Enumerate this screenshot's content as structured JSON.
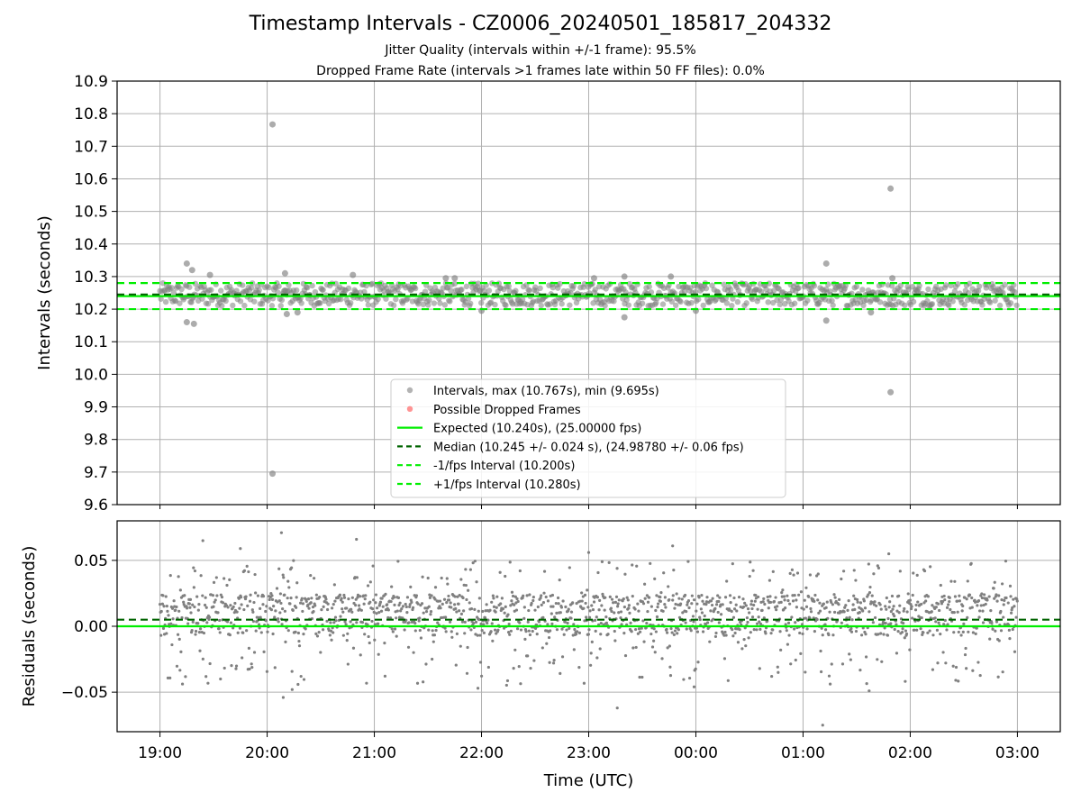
{
  "figure": {
    "title": "Timestamp Intervals - CZ0006_20240501_185817_204332",
    "subtitle_1": "Jitter Quality (intervals within +/-1 frame): 95.5%",
    "subtitle_2": "Dropped Frame Rate (intervals >1 frames late within 50 FF files): 0.0%"
  },
  "colors": {
    "points": "#808080",
    "dropped": "#ff4d4d",
    "expected": "#00ee00",
    "median": "#006400",
    "bounds": "#00ee00",
    "grid": "#b0b0b0"
  },
  "chart_data": [
    {
      "type": "scatter",
      "ylabel": "Intervals (seconds)",
      "ylim": [
        9.6,
        10.9
      ],
      "yticks": [
        "9.6",
        "9.7",
        "9.8",
        "9.9",
        "10.0",
        "10.1",
        "10.2",
        "10.3",
        "10.4",
        "10.5",
        "10.6",
        "10.7",
        "10.8",
        "10.9"
      ],
      "xlim": [
        "18:36",
        "03:24"
      ],
      "grid": true,
      "legend_position": "lower center",
      "series": [
        {
          "name": "Intervals, max (10.767s), min (9.695s)",
          "kind": "points"
        },
        {
          "name": "Possible Dropped Frames",
          "kind": "points",
          "count": 0
        },
        {
          "name": "Expected (10.240s), (25.00000 fps)",
          "kind": "hline",
          "y": 10.24
        },
        {
          "name": "Median (10.245 +/- 0.024 s), (24.98780 +/- 0.06 fps)",
          "kind": "hline",
          "y": 10.245
        },
        {
          "name": "-1/fps Interval (10.200s)",
          "kind": "hline",
          "y": 10.2
        },
        {
          "name": "+1/fps Interval (10.280s)",
          "kind": "hline",
          "y": 10.28
        }
      ],
      "bulk_range": [
        10.21,
        10.28
      ],
      "outliers": [
        {
          "t": "19:15",
          "y": 10.34
        },
        {
          "t": "19:18",
          "y": 10.32
        },
        {
          "t": "19:15",
          "y": 10.16
        },
        {
          "t": "19:19",
          "y": 10.155
        },
        {
          "t": "19:28",
          "y": 10.305
        },
        {
          "t": "20:03",
          "y": 10.767
        },
        {
          "t": "20:03",
          "y": 9.695
        },
        {
          "t": "20:10",
          "y": 10.31
        },
        {
          "t": "20:11",
          "y": 10.185
        },
        {
          "t": "20:17",
          "y": 10.19
        },
        {
          "t": "20:48",
          "y": 10.305
        },
        {
          "t": "21:40",
          "y": 10.295
        },
        {
          "t": "21:45",
          "y": 10.295
        },
        {
          "t": "22:00",
          "y": 10.195
        },
        {
          "t": "23:03",
          "y": 10.295
        },
        {
          "t": "23:20",
          "y": 10.3
        },
        {
          "t": "23:20",
          "y": 10.175
        },
        {
          "t": "23:46",
          "y": 10.3
        },
        {
          "t": "00:00",
          "y": 10.195
        },
        {
          "t": "01:13",
          "y": 10.34
        },
        {
          "t": "01:13",
          "y": 10.165
        },
        {
          "t": "01:38",
          "y": 10.19
        },
        {
          "t": "01:49",
          "y": 10.57
        },
        {
          "t": "01:49",
          "y": 9.945
        },
        {
          "t": "01:50",
          "y": 10.295
        }
      ]
    },
    {
      "type": "scatter",
      "xlabel": "Time (UTC)",
      "ylabel": "Residuals (seconds)",
      "ylim": [
        -0.08,
        0.08
      ],
      "yticks": [
        "−0.05",
        "0.00",
        "0.05"
      ],
      "ytick_values": [
        -0.05,
        0.0,
        0.05
      ],
      "xticks": [
        "19:00",
        "20:00",
        "21:00",
        "22:00",
        "23:00",
        "00:00",
        "01:00",
        "02:00",
        "03:00"
      ],
      "xlim": [
        "18:36",
        "03:24"
      ],
      "grid": true,
      "series": [
        {
          "name": "",
          "kind": "points",
          "range": [
            -0.045,
            0.05
          ]
        },
        {
          "name": "",
          "kind": "hline",
          "y": 0.0
        },
        {
          "name": "",
          "kind": "hline",
          "y": 0.005
        }
      ],
      "outliers": [
        {
          "t": "19:24",
          "y": 0.065
        },
        {
          "t": "19:45",
          "y": 0.059
        },
        {
          "t": "20:08",
          "y": 0.071
        },
        {
          "t": "20:09",
          "y": -0.054
        },
        {
          "t": "20:14",
          "y": -0.048
        },
        {
          "t": "20:50",
          "y": 0.066
        },
        {
          "t": "21:58",
          "y": -0.047
        },
        {
          "t": "23:16",
          "y": -0.062
        },
        {
          "t": "23:00",
          "y": 0.056
        },
        {
          "t": "23:47",
          "y": 0.061
        },
        {
          "t": "23:59",
          "y": -0.046
        },
        {
          "t": "01:11",
          "y": -0.075
        },
        {
          "t": "01:37",
          "y": -0.049
        },
        {
          "t": "01:48",
          "y": 0.055
        }
      ]
    }
  ]
}
